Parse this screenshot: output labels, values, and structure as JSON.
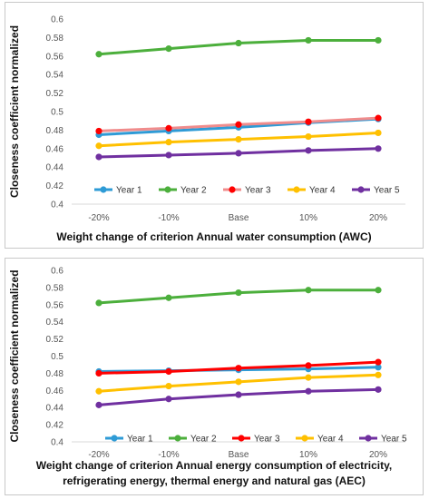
{
  "chart_data": [
    {
      "type": "line",
      "title": "",
      "xlabel": [
        "Weight change of criterion  Annual water consumption (AWC)"
      ],
      "ylabel": "Closeness coefficient normalized",
      "categories": [
        "-20%",
        "-10%",
        "Base",
        "10%",
        "20%"
      ],
      "ylim": [
        0.4,
        0.6
      ],
      "yticks": [
        "0.4",
        "0.42",
        "0.44",
        "0.46",
        "0.48",
        "0.5",
        "0.52",
        "0.54",
        "0.56",
        "0.58",
        "0.6"
      ],
      "grid": false,
      "legend": "inside-bottom",
      "series": [
        {
          "name": "Year 1",
          "color": "#2E9BD6",
          "values": [
            0.475,
            0.479,
            0.483,
            0.488,
            0.492
          ]
        },
        {
          "name": "Year 2",
          "color": "#4CAF3C",
          "values": [
            0.562,
            0.568,
            0.574,
            0.577,
            0.577
          ]
        },
        {
          "name": "Year 3",
          "color": "#F08C8C",
          "marker_color": "#FF0000",
          "values": [
            0.479,
            0.482,
            0.486,
            0.489,
            0.493
          ]
        },
        {
          "name": "Year 4",
          "color": "#FFC000",
          "values": [
            0.463,
            0.467,
            0.47,
            0.473,
            0.477
          ]
        },
        {
          "name": "Year 5",
          "color": "#7030A0",
          "values": [
            0.451,
            0.453,
            0.455,
            0.458,
            0.46
          ]
        }
      ]
    },
    {
      "type": "line",
      "title": "",
      "xlabel": [
        "Weight change of criterion  Annual energy consumption of electricity,",
        "refrigerating  energy, thermal energy and natural gas (AEC)"
      ],
      "ylabel": "Closeness coefficient normalized",
      "categories": [
        "-20%",
        "-10%",
        "Base",
        "10%",
        "20%"
      ],
      "ylim": [
        0.4,
        0.6
      ],
      "yticks": [
        "0.4",
        "0.42",
        "0.44",
        "0.46",
        "0.48",
        "0.5",
        "0.52",
        "0.54",
        "0.56",
        "0.58",
        "0.6"
      ],
      "grid": false,
      "legend": "bottom",
      "series": [
        {
          "name": "Year 1",
          "color": "#2E9BD6",
          "values": [
            0.482,
            0.483,
            0.484,
            0.485,
            0.487
          ]
        },
        {
          "name": "Year 2",
          "color": "#4CAF3C",
          "values": [
            0.562,
            0.568,
            0.574,
            0.577,
            0.577
          ]
        },
        {
          "name": "Year 3",
          "color": "#FF0000",
          "values": [
            0.48,
            0.482,
            0.486,
            0.489,
            0.493
          ]
        },
        {
          "name": "Year 4",
          "color": "#FFC000",
          "values": [
            0.459,
            0.465,
            0.47,
            0.475,
            0.478
          ]
        },
        {
          "name": "Year 5",
          "color": "#7030A0",
          "values": [
            0.443,
            0.45,
            0.455,
            0.459,
            0.461
          ]
        }
      ]
    }
  ]
}
